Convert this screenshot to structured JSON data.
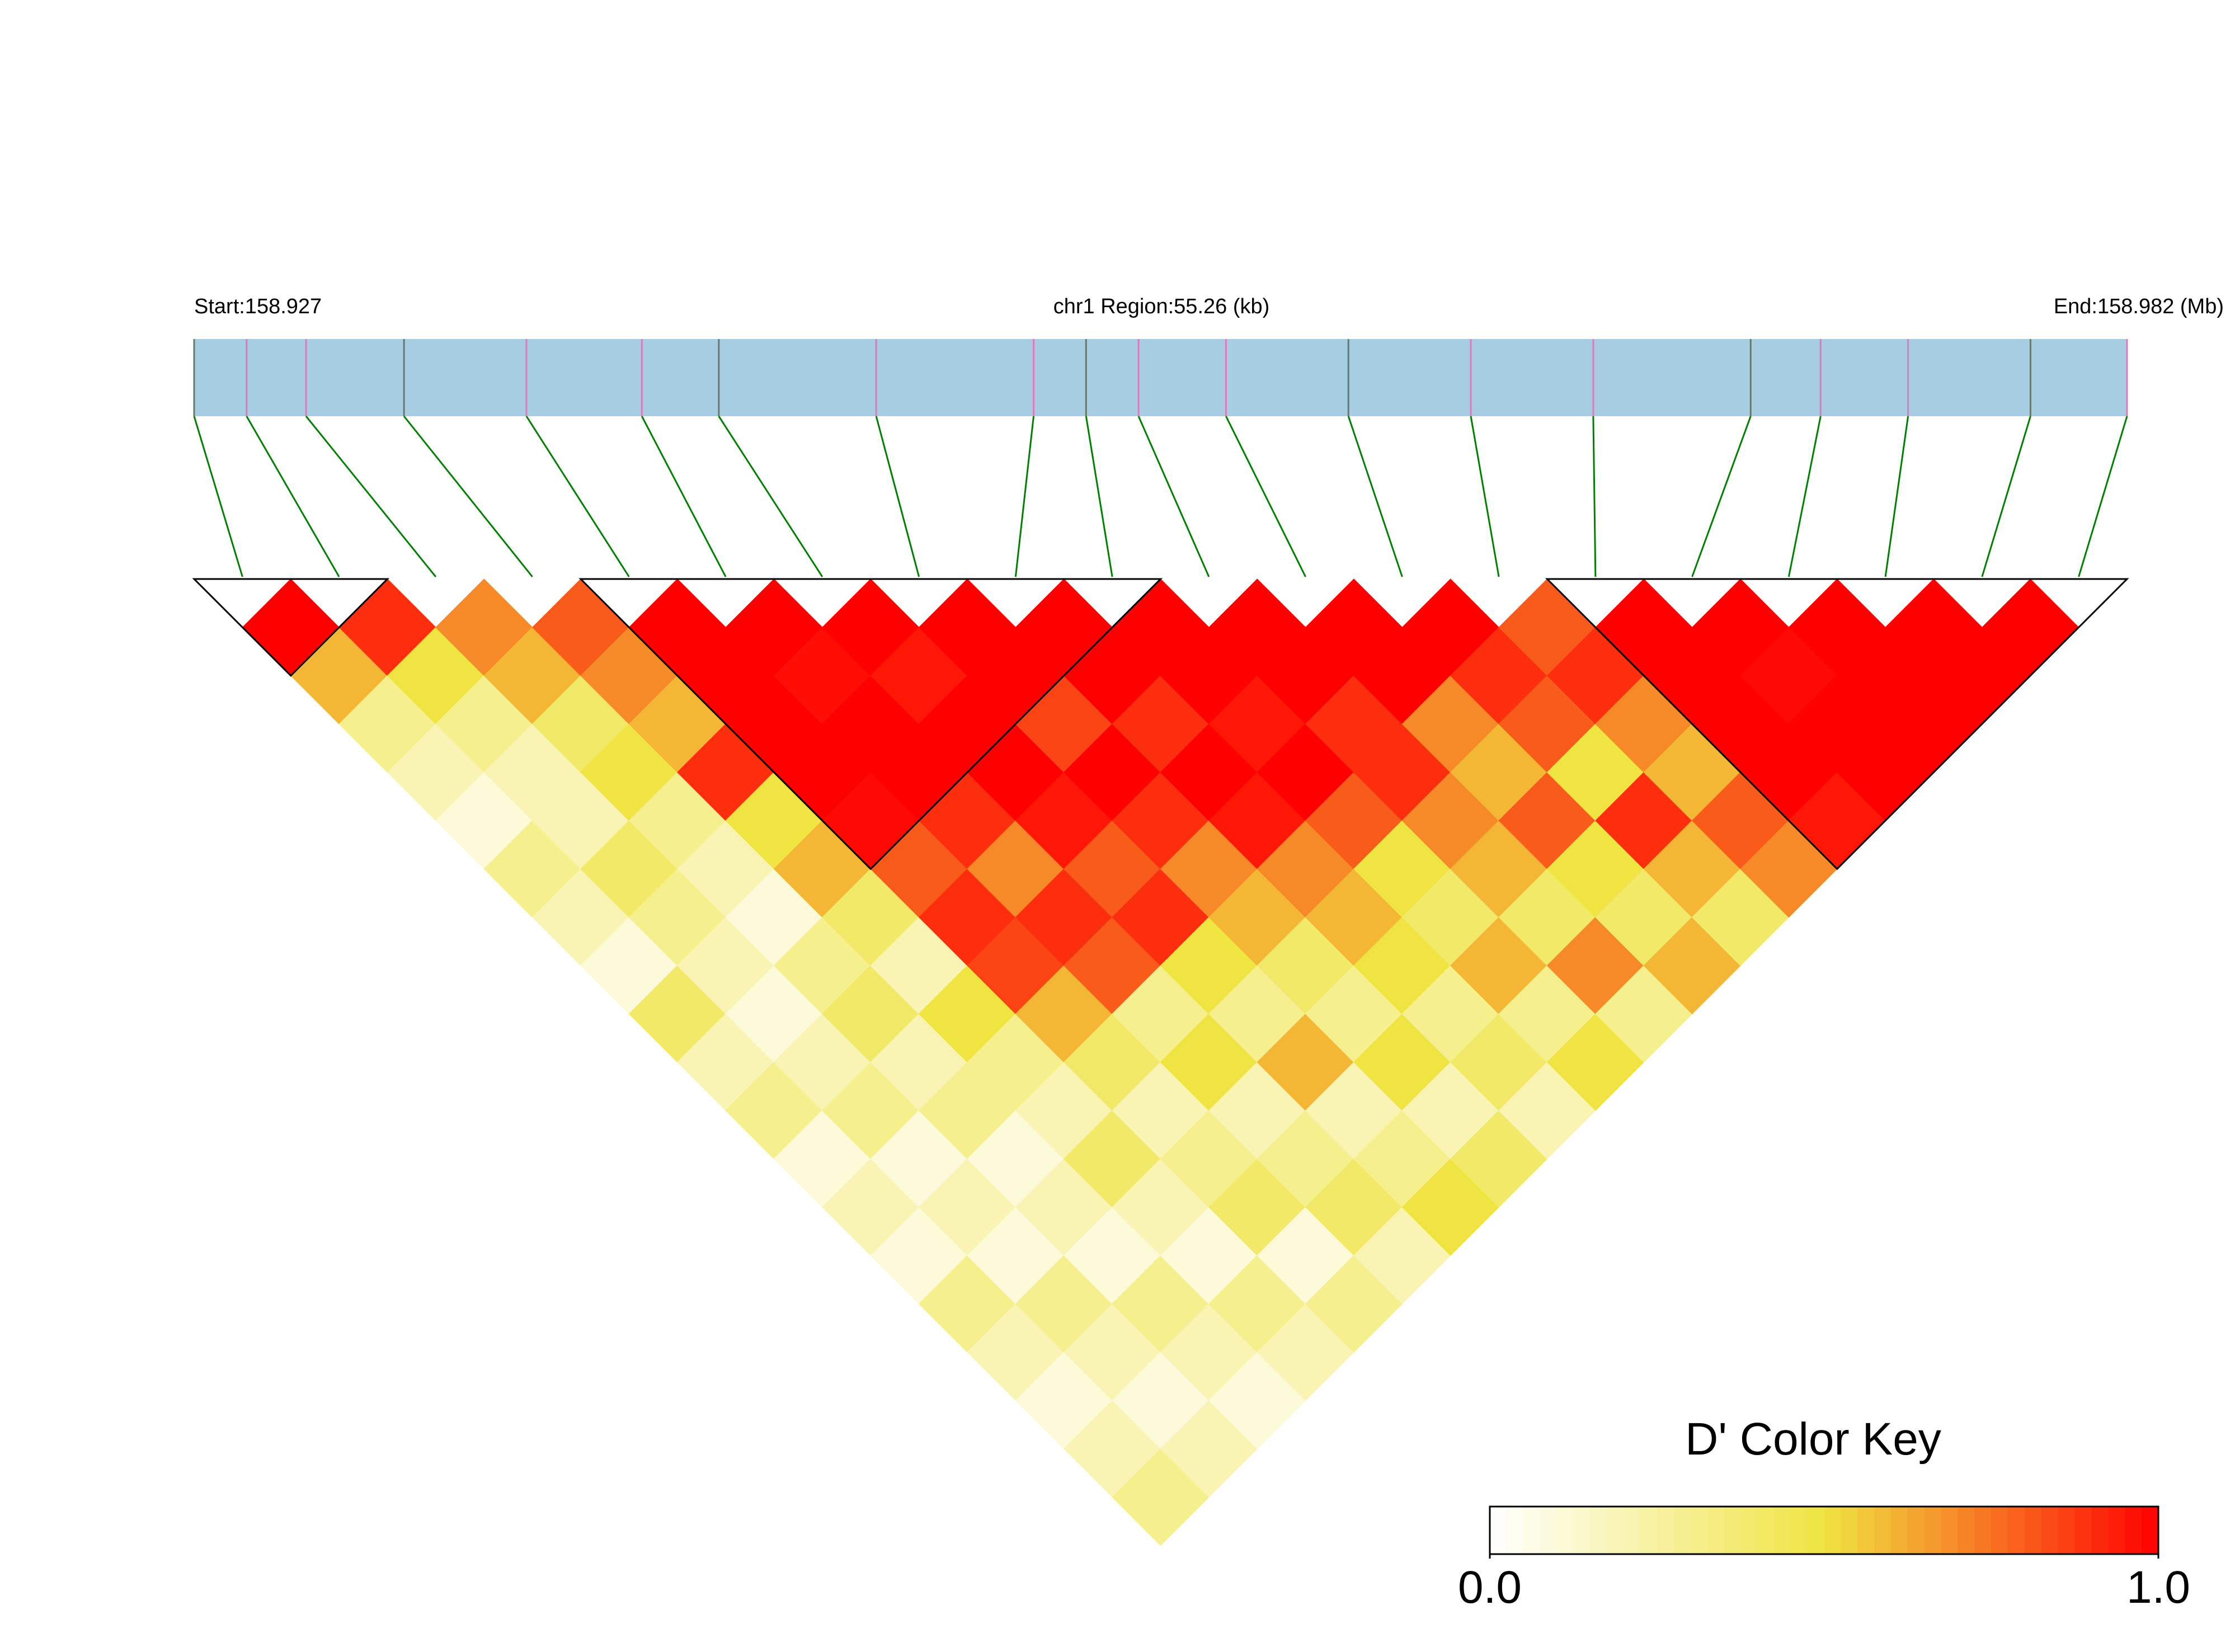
{
  "chart_data": {
    "type": "ld-heatmap",
    "start_label": "Start:158.927",
    "region_label": "chr1 Region:55.26 (kb)",
    "end_label": "End:158.982 (Mb)",
    "region_length": 55.26,
    "snp_positions": [
      0,
      1.5,
      3.2,
      6.0,
      9.5,
      12.8,
      15.0,
      19.5,
      24.0,
      25.5,
      27.0,
      29.5,
      33.0,
      36.5,
      40.0,
      44.5,
      46.5,
      49.0,
      52.5,
      55.26
    ],
    "values": [
      [
        1
      ],
      [
        0.6,
        0.9
      ],
      [
        0.3,
        0.5,
        0.7
      ],
      [
        0.2,
        0.3,
        0.6,
        0.8
      ],
      [
        0.1,
        0.2,
        0.4,
        0.7,
        1
      ],
      [
        0.3,
        0.2,
        0.5,
        0.6,
        1,
        1
      ],
      [
        0.2,
        0.4,
        0.3,
        0.9,
        1,
        0.97,
        1
      ],
      [
        0.1,
        0.3,
        0.2,
        0.5,
        1,
        1,
        0.95,
        1
      ],
      [
        0.4,
        0.2,
        0.1,
        0.6,
        0.98,
        1,
        1,
        1,
        1
      ],
      [
        0.2,
        0.1,
        0.3,
        0.4,
        0.8,
        0.9,
        1,
        0.85,
        1,
        1
      ],
      [
        0.3,
        0.2,
        0.4,
        0.2,
        0.9,
        0.7,
        0.95,
        1,
        0.9,
        1,
        1
      ],
      [
        0.1,
        0.3,
        0.2,
        0.5,
        0.85,
        0.9,
        0.8,
        0.9,
        1,
        0.95,
        1,
        1
      ],
      [
        0.2,
        0.1,
        0.3,
        0.3,
        0.6,
        0.8,
        0.9,
        0.7,
        0.95,
        1,
        0.9,
        1,
        1
      ],
      [
        0.1,
        0.2,
        0.1,
        0.2,
        0.4,
        0.3,
        0.5,
        0.6,
        0.7,
        0.8,
        0.9,
        0.7,
        0.9,
        0.8
      ],
      [
        0.3,
        0.1,
        0.2,
        0.4,
        0.2,
        0.5,
        0.3,
        0.4,
        0.6,
        0.5,
        0.7,
        0.6,
        0.8,
        0.9,
        1
      ],
      [
        0.2,
        0.3,
        0.1,
        0.2,
        0.3,
        0.2,
        0.6,
        0.3,
        0.5,
        0.4,
        0.6,
        0.8,
        0.5,
        0.7,
        1,
        1
      ],
      [
        0.1,
        0.2,
        0.3,
        0.1,
        0.4,
        0.3,
        0.2,
        0.5,
        0.3,
        0.6,
        0.4,
        0.5,
        0.9,
        0.6,
        1,
        0.98,
        1
      ],
      [
        0.2,
        0.1,
        0.2,
        0.3,
        0.1,
        0.4,
        0.3,
        0.2,
        0.4,
        0.3,
        0.7,
        0.4,
        0.6,
        0.8,
        1,
        1,
        1,
        1
      ],
      [
        0.3,
        0.2,
        0.1,
        0.2,
        0.3,
        0.2,
        0.5,
        0.4,
        0.2,
        0.5,
        0.3,
        0.6,
        0.4,
        0.7,
        0.95,
        1,
        1,
        1,
        1
      ]
    ],
    "blocks": [
      [
        0,
        1
      ],
      [
        4,
        9
      ],
      [
        14,
        19
      ]
    ],
    "color_stops": [
      "#ffffff",
      "#f0e442",
      "#ff0000"
    ],
    "track_color": "#a6cde2",
    "connector_color": "#008000",
    "colorkey": {
      "title": "D' Color Key",
      "lim": [
        0,
        1
      ],
      "ticks": [
        {
          "value": 0,
          "label": "0.0"
        },
        {
          "value": 1,
          "label": "1.0"
        }
      ]
    }
  }
}
